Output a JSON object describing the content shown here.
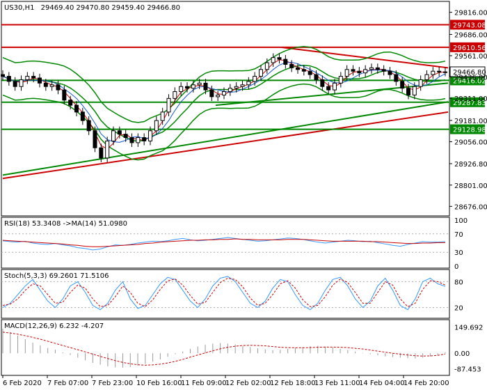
{
  "window": {
    "title": "US30,H1",
    "ohlc": "29469.40 29470.80 29459.40 29466.80"
  },
  "colors": {
    "candle_bull": "#000000",
    "candle_bear": "#000000",
    "boll": "#008800",
    "sup_line": "#008800",
    "res_line": "#cc0000",
    "ma_fast_red": "#cc0000",
    "ma_blue": "#1155cc",
    "ma_slow_green": "#008800",
    "rsi": "#3399ff",
    "rsi_ma": "#cc0000",
    "stoch_main": "#3399ff",
    "stoch_sig": "#cc0000",
    "macd_hist": "#999999",
    "macd_sig": "#cc0000",
    "level_bg_red": "#cc0000",
    "level_bg_green": "#008800",
    "current_bg": "#ffffff"
  },
  "chart_data": [
    {
      "type": "candlestick",
      "title": "US30,H1 29469.40 29470.80 29459.40 29466.80",
      "ylim": [
        28620,
        29880
      ],
      "y_ticks": [
        "29816.00",
        "29686.00",
        "29561.00",
        "29436.00",
        "29311.00",
        "29181.00",
        "29056.00",
        "28926.80",
        "28801.00",
        "28676.00"
      ],
      "x_ticks": [
        "6 Feb 2020",
        "7 Feb 07:00",
        "7 Feb 23:00",
        "10 Feb 16:00",
        "11 Feb 09:00",
        "12 Feb 02:00",
        "12 Feb 18:00",
        "13 Feb 11:00",
        "14 Feb 04:00",
        "14 Feb 20:00"
      ],
      "horizontal_levels": [
        {
          "label": "29743.08",
          "value": 29743.08,
          "color": "red"
        },
        {
          "label": "29610.56",
          "value": 29610.56,
          "color": "red"
        },
        {
          "label": "29416.02",
          "value": 29416.02,
          "color": "green"
        },
        {
          "label": "29287.83",
          "value": 29287.83,
          "color": "green"
        },
        {
          "label": "29128.98",
          "value": 29128.98,
          "color": "green"
        }
      ],
      "current_price": {
        "label": "29466.80",
        "value": 29466.8
      },
      "close": [
        29440,
        29410,
        29380,
        29420,
        29440,
        29430,
        29400,
        29380,
        29390,
        29360,
        29300,
        29270,
        29230,
        29180,
        29120,
        29020,
        28960,
        29060,
        29120,
        29100,
        29080,
        29050,
        29080,
        29060,
        29120,
        29180,
        29230,
        29310,
        29350,
        29380,
        29370,
        29390,
        29400,
        29360,
        29320,
        29330,
        29350,
        29370,
        29380,
        29390,
        29410,
        29440,
        29480,
        29520,
        29550,
        29540,
        29510,
        29490,
        29480,
        29470,
        29450,
        29420,
        29380,
        29360,
        29400,
        29440,
        29480,
        29470,
        29460,
        29480,
        29490,
        29480,
        29470,
        29450,
        29410,
        29370,
        29330,
        29380,
        29420,
        29450,
        29470,
        29465,
        29466
      ]
    },
    {
      "type": "line",
      "title": "RSI(18) 53.3408 ->MA(14) 51.0980",
      "ylim": [
        0,
        100
      ],
      "y_ticks": [
        "100",
        "70",
        "30",
        "0"
      ],
      "series": [
        {
          "name": "RSI(18)",
          "values": [
            55,
            53,
            52,
            54,
            50,
            48,
            47,
            49,
            46,
            44,
            40,
            38,
            35,
            37,
            42,
            46,
            45,
            47,
            50,
            52,
            54,
            53,
            55,
            58,
            60,
            57,
            55,
            56,
            58,
            60,
            62,
            60,
            58,
            56,
            54,
            55,
            57,
            59,
            61,
            60,
            58,
            55,
            52,
            50,
            52,
            54,
            56,
            55,
            53,
            54,
            51,
            48,
            45,
            43,
            47,
            50,
            53,
            52,
            52,
            53
          ]
        },
        {
          "name": "MA(14)",
          "values": [
            56,
            55,
            54,
            53,
            52,
            51,
            50,
            49,
            48,
            46,
            45,
            43,
            42,
            42,
            43,
            44,
            45,
            46,
            47,
            49,
            50,
            52,
            53,
            54,
            55,
            56,
            56,
            57,
            57,
            58,
            58,
            59,
            58,
            58,
            57,
            57,
            57,
            57,
            58,
            58,
            58,
            57,
            56,
            55,
            54,
            54,
            54,
            54,
            54,
            53,
            53,
            52,
            51,
            50,
            49,
            49,
            50,
            50,
            51,
            51
          ]
        }
      ]
    },
    {
      "type": "line",
      "title": "Stoch(5,3,3) 69.2601 71.5106",
      "ylim": [
        0,
        100
      ],
      "y_ticks": [
        "80",
        "20"
      ],
      "series": [
        {
          "name": "Stoch",
          "values": [
            20,
            30,
            50,
            70,
            85,
            60,
            35,
            20,
            40,
            70,
            80,
            55,
            25,
            15,
            30,
            60,
            80,
            40,
            18,
            25,
            50,
            75,
            90,
            85,
            60,
            35,
            20,
            40,
            70,
            88,
            92,
            80,
            55,
            30,
            20,
            35,
            65,
            85,
            80,
            50,
            25,
            15,
            30,
            60,
            85,
            90,
            70,
            40,
            20,
            35,
            70,
            88,
            60,
            25,
            15,
            40,
            80,
            88,
            75,
            69
          ]
        },
        {
          "name": "Signal",
          "values": [
            25,
            28,
            40,
            60,
            75,
            70,
            50,
            30,
            32,
            55,
            72,
            65,
            40,
            22,
            25,
            45,
            70,
            55,
            30,
            22,
            38,
            62,
            82,
            86,
            72,
            48,
            28,
            32,
            55,
            78,
            88,
            85,
            68,
            42,
            25,
            30,
            50,
            75,
            82,
            65,
            38,
            22,
            25,
            45,
            72,
            86,
            78,
            55,
            30,
            30,
            55,
            80,
            72,
            40,
            22,
            30,
            62,
            82,
            80,
            72
          ]
        }
      ]
    },
    {
      "type": "bar",
      "title": "MACD(12,26,9) 6.232 -4.207",
      "ylim": [
        -110,
        175
      ],
      "y_ticks": [
        "149.692",
        "0.00",
        "-87.453"
      ],
      "series": [
        {
          "name": "MACD",
          "values": [
            140,
            120,
            100,
            80,
            60,
            45,
            30,
            20,
            5,
            -10,
            -25,
            -40,
            -55,
            -65,
            -75,
            -80,
            -82,
            -78,
            -70,
            -60,
            -48,
            -35,
            -20,
            -5,
            10,
            25,
            38,
            48,
            55,
            58,
            55,
            50,
            42,
            35,
            28,
            22,
            18,
            20,
            25,
            30,
            35,
            40,
            42,
            38,
            32,
            25,
            18,
            10,
            2,
            -5,
            -12,
            -18,
            -22,
            -25,
            -28,
            -30,
            -25,
            -18,
            -10,
            6
          ]
        },
        {
          "name": "Signal",
          "values": [
            120,
            115,
            108,
            100,
            90,
            80,
            68,
            56,
            44,
            32,
            20,
            8,
            -5,
            -18,
            -30,
            -42,
            -52,
            -60,
            -65,
            -68,
            -66,
            -62,
            -55,
            -46,
            -35,
            -22,
            -10,
            2,
            14,
            25,
            34,
            40,
            44,
            45,
            44,
            42,
            38,
            34,
            32,
            31,
            31,
            32,
            34,
            35,
            35,
            34,
            32,
            28,
            24,
            18,
            12,
            6,
            0,
            -5,
            -10,
            -14,
            -16,
            -15,
            -12,
            -4.2
          ]
        }
      ]
    }
  ]
}
